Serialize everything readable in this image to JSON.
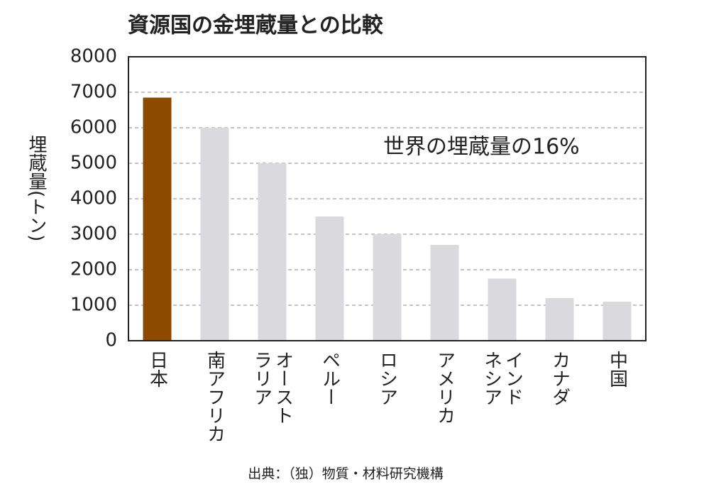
{
  "chart_data": {
    "type": "bar",
    "title": "資源国の金埋蔵量との比較",
    "y_label": "埋蔵量(トン)",
    "annotation": "世界の埋蔵量の16%",
    "source": "出典：（独）物質・材料研究機構",
    "categories": [
      "日本",
      "南アフリカ",
      "オーストラリア",
      "ペルー",
      "ロシア",
      "アメリカ",
      "インドネシア",
      "カナダ",
      "中国"
    ],
    "values": [
      6850,
      6000,
      5000,
      3500,
      3000,
      2700,
      1750,
      1200,
      1100
    ],
    "colors": [
      "#8b4a00",
      "#d9d9de",
      "#d9d9de",
      "#d9d9de",
      "#d9d9de",
      "#d9d9de",
      "#d9d9de",
      "#d9d9de",
      "#d9d9de"
    ],
    "ylim": [
      0,
      8000
    ],
    "yticks": [
      0,
      1000,
      2000,
      3000,
      4000,
      5000,
      6000,
      7000,
      8000
    ],
    "grid": true
  }
}
